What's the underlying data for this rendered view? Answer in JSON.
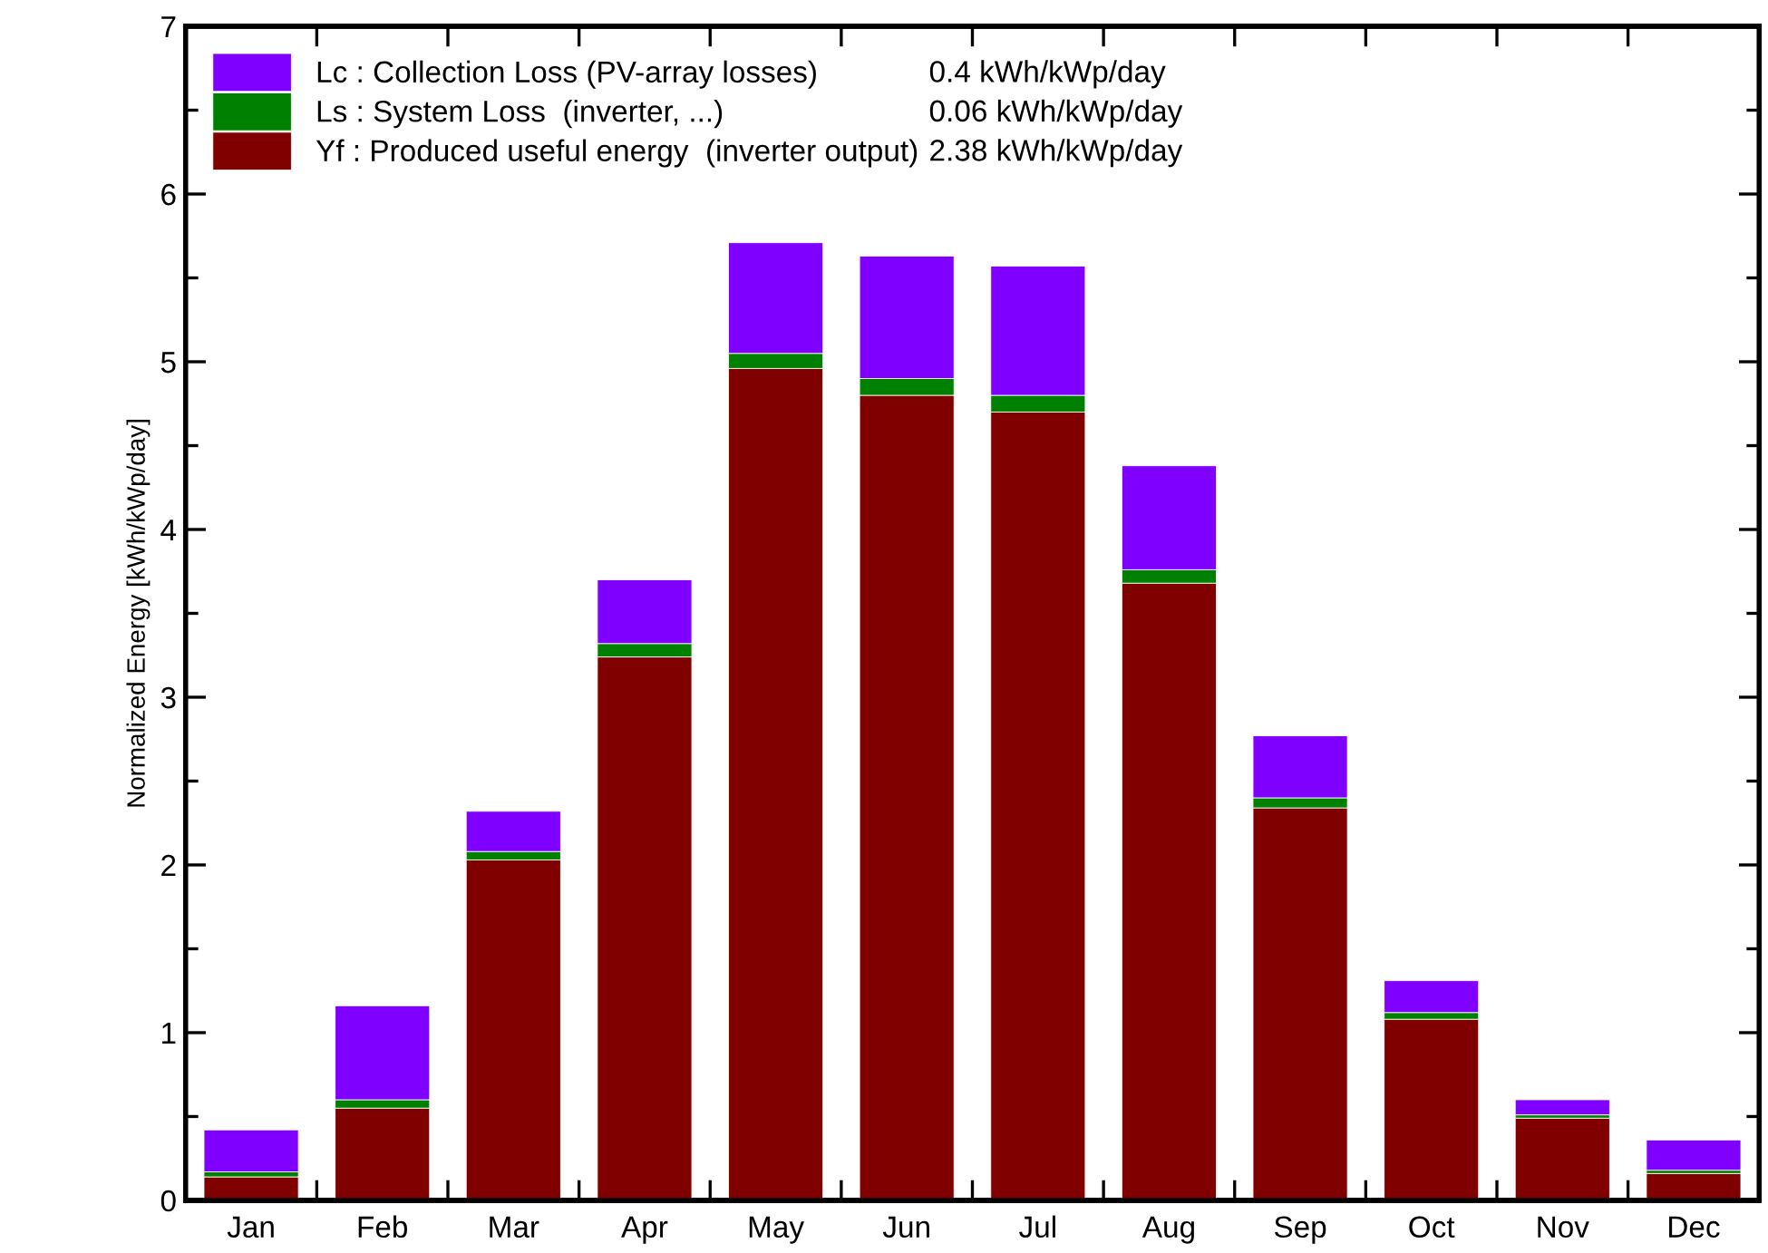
{
  "chart_data": {
    "type": "bar",
    "stacked": true,
    "ylabel": "Normalized Energy [kWh/kWp/day]",
    "categories": [
      "Jan",
      "Feb",
      "Mar",
      "Apr",
      "May",
      "Jun",
      "Jul",
      "Aug",
      "Sep",
      "Oct",
      "Nov",
      "Dec"
    ],
    "series": [
      {
        "name": "Yf : Produced useful energy  (inverter output)",
        "color": "#800000",
        "values": [
          0.14,
          0.55,
          2.03,
          3.24,
          4.96,
          4.8,
          4.7,
          3.68,
          2.34,
          1.08,
          0.49,
          0.16
        ]
      },
      {
        "name": "Ls : System Loss  (inverter, ...)",
        "color": "#008000",
        "values": [
          0.03,
          0.05,
          0.05,
          0.08,
          0.09,
          0.1,
          0.1,
          0.08,
          0.06,
          0.04,
          0.02,
          0.02
        ]
      },
      {
        "name": "Lc : Collection Loss (PV-array losses)",
        "color": "#8000ff",
        "values": [
          0.25,
          0.56,
          0.24,
          0.38,
          0.66,
          0.73,
          0.77,
          0.62,
          0.37,
          0.19,
          0.09,
          0.18
        ]
      }
    ],
    "annotations": [
      "2.38 kWh/kWp/day",
      "0.06 kWh/kWp/day",
      "0.4 kWh/kWp/day"
    ],
    "ylim": [
      0,
      7
    ],
    "yticks": [
      0,
      1,
      2,
      3,
      4,
      5,
      6,
      7
    ],
    "grid": false,
    "legend": "top left"
  }
}
